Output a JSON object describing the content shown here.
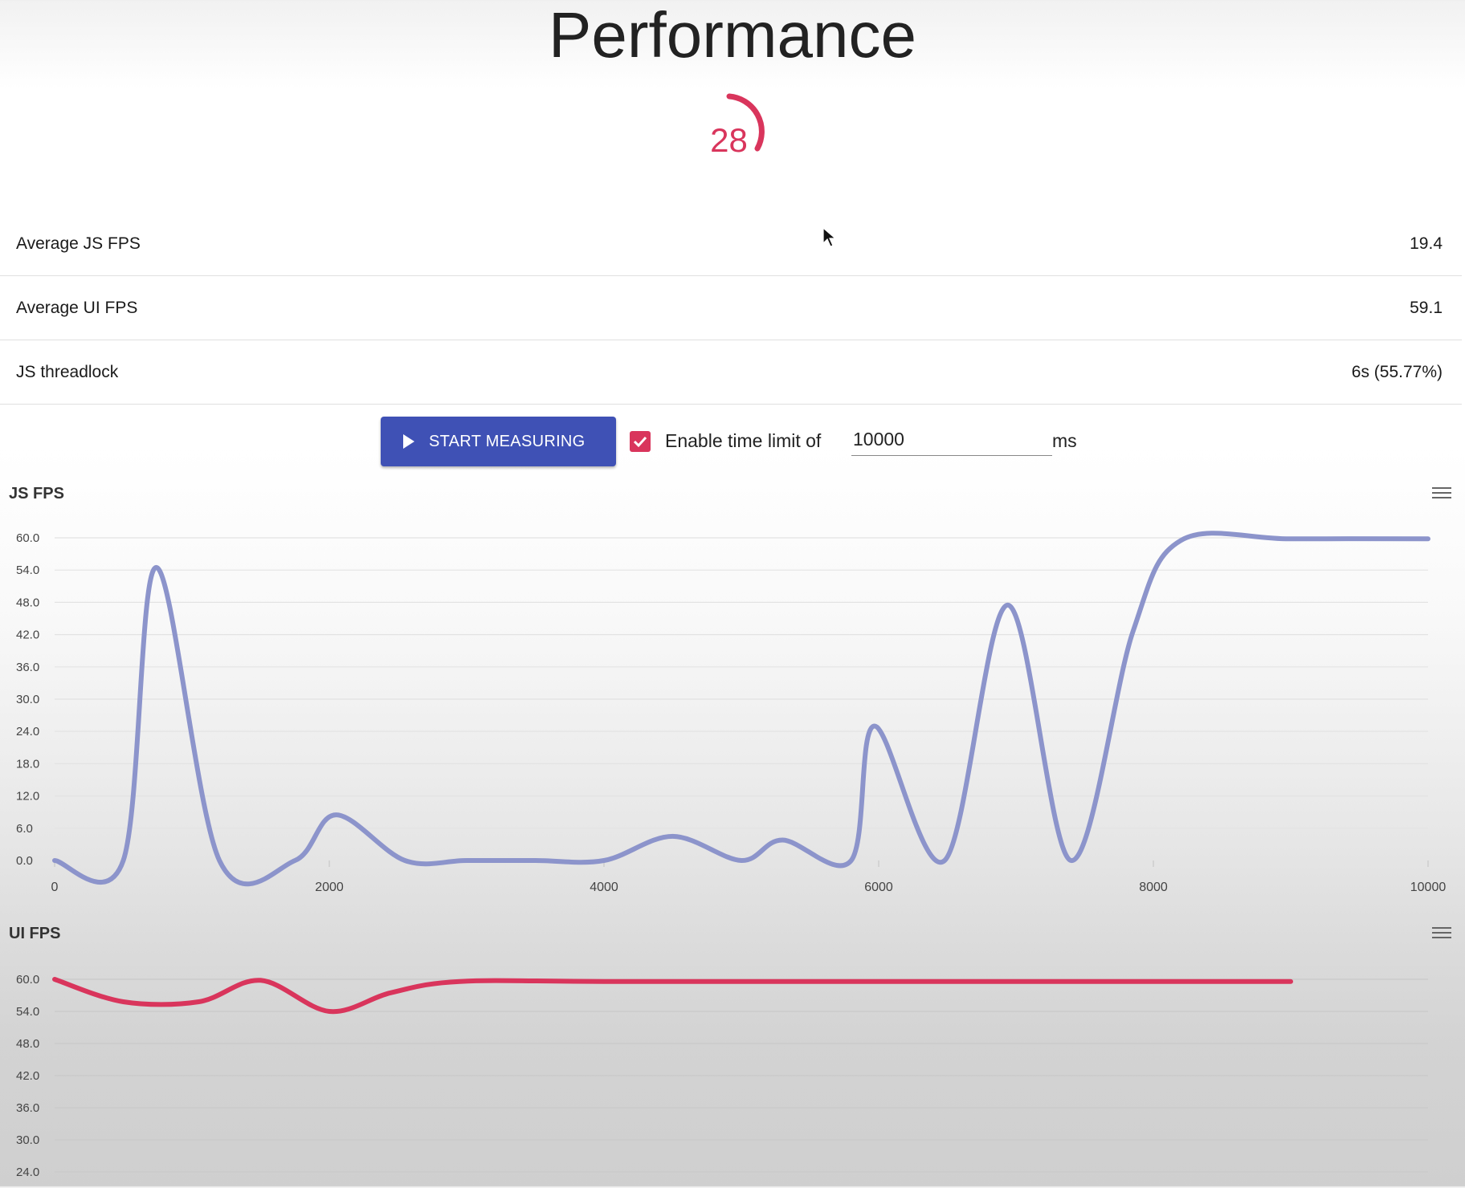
{
  "page": {
    "title": "Performance",
    "gauge_value": "28",
    "accent_color": "#d9355c",
    "primary_color": "#3f51b5"
  },
  "stats": [
    {
      "label": "Average JS FPS",
      "value": "19.4"
    },
    {
      "label": "Average UI FPS",
      "value": "59.1"
    },
    {
      "label": "JS threadlock",
      "value": "6s (55.77%)"
    }
  ],
  "controls": {
    "start_label": "START MEASURING",
    "start_icon": "play-icon",
    "checkbox_checked": true,
    "checkbox_label": "Enable time limit of",
    "time_limit_value": "10000",
    "unit_label": "ms"
  },
  "chart_data": [
    {
      "type": "line",
      "title": "JS FPS",
      "xlabel": "",
      "ylabel": "",
      "xlim": [
        0,
        10000
      ],
      "ylim": [
        0,
        60
      ],
      "x_ticks": [
        "0",
        "2000",
        "4000",
        "6000",
        "8000",
        "10000"
      ],
      "y_ticks": [
        "0.0",
        "6.0",
        "12.0",
        "18.0",
        "24.0",
        "30.0",
        "36.0",
        "42.0",
        "48.0",
        "54.0",
        "60.0"
      ],
      "grid": true,
      "legend": "none",
      "series": [
        {
          "color": "#8c94cb",
          "x": [
            0,
            500,
            740,
            1200,
            1750,
            2050,
            2550,
            3000,
            3500,
            4000,
            4500,
            5000,
            5300,
            5800,
            5970,
            6480,
            6940,
            7400,
            7850,
            8200,
            9000,
            10000
          ],
          "y": [
            0,
            0,
            54.5,
            0,
            0,
            8.5,
            0,
            0,
            0,
            0,
            4.5,
            0,
            3.8,
            0,
            25,
            0,
            47.5,
            0,
            42.5,
            59.5,
            59.8,
            59.8
          ]
        }
      ]
    },
    {
      "type": "line",
      "title": "UI FPS",
      "xlabel": "",
      "ylabel": "",
      "ylim": [
        24,
        60
      ],
      "y_ticks": [
        "60.0",
        "54.0",
        "48.0",
        "42.0",
        "36.0",
        "30.0",
        "24.0"
      ],
      "grid": true,
      "legend": "none",
      "series": [
        {
          "color": "#d9355c",
          "x": [
            0,
            500,
            1050,
            1500,
            2000,
            2450,
            2950,
            4000,
            6000,
            8000,
            9000
          ],
          "y": [
            60,
            55.8,
            55.8,
            59.8,
            54,
            57.5,
            59.6,
            59.6,
            59.6,
            59.6,
            59.6
          ]
        }
      ]
    }
  ]
}
